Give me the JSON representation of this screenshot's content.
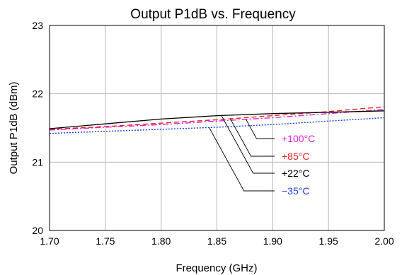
{
  "chart_data": {
    "type": "line",
    "title": "Output P1dB vs. Frequency",
    "xlabel": "Frequency (GHz)",
    "ylabel": "Output P1dB (dBm)",
    "xlim": [
      1.7,
      2.0
    ],
    "ylim": [
      20,
      23
    ],
    "x_ticks": [
      "1.70",
      "1.75",
      "1.80",
      "1.85",
      "1.90",
      "1.95",
      "2.00"
    ],
    "y_ticks": [
      "20",
      "21",
      "22",
      "23"
    ],
    "grid": true,
    "x": [
      1.7,
      1.75,
      1.8,
      1.85,
      1.9,
      1.95,
      2.0
    ],
    "series": [
      {
        "name": "+22°C",
        "color": "#000000",
        "dash": "solid",
        "values": [
          21.49,
          21.56,
          21.63,
          21.68,
          21.71,
          21.73,
          21.75
        ]
      },
      {
        "name": "+85°C",
        "color": "#e8201e",
        "dash": "dashed",
        "values": [
          21.48,
          21.52,
          21.57,
          21.62,
          21.68,
          21.74,
          21.81
        ]
      },
      {
        "name": "+100°C",
        "color": "#e020e0",
        "dash": "dashdot",
        "values": [
          21.47,
          21.51,
          21.55,
          21.6,
          21.65,
          21.71,
          21.77
        ]
      },
      {
        "name": "−35°C",
        "color": "#1f3fd8",
        "dash": "dotted",
        "values": [
          21.42,
          21.45,
          21.48,
          21.51,
          21.55,
          21.6,
          21.65
        ]
      }
    ],
    "annotations": [
      {
        "series": "+100°C",
        "text": "+100°C",
        "color": "#e020e0",
        "at_x": 1.876
      },
      {
        "series": "+85°C",
        "text": "+85°C",
        "color": "#e8201e",
        "at_x": 1.862
      },
      {
        "series": "+22°C",
        "text": "+22°C",
        "color": "#000000",
        "at_x": 1.854
      },
      {
        "series": "−35°C",
        "text": "−35°C",
        "color": "#1f3fd8",
        "at_x": 1.843
      }
    ]
  }
}
